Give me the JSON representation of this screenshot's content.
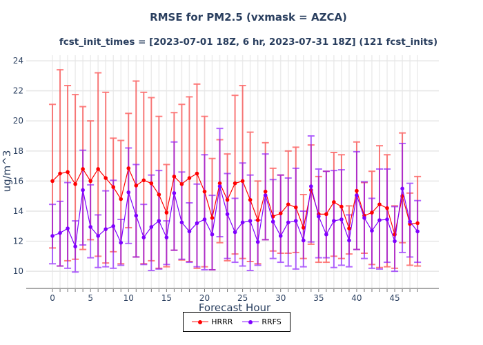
{
  "chart_data": {
    "type": "line",
    "title": "RMSE for PM2.5 (vxmask = AZCA)",
    "subtitle": "fcst_init_times = [2023-07-01 18Z, 6 hr, 2023-07-31 18Z] (121 fcst_inits)",
    "xlabel": "Forecast Hour",
    "ylabel": "ug/m^3",
    "xlim": [
      -3.45,
      50.8
    ],
    "ylim": [
      8.86,
      24.37
    ],
    "xticks": [
      0,
      5,
      10,
      15,
      20,
      25,
      30,
      35,
      40,
      45
    ],
    "yticks": [
      10,
      12,
      14,
      16,
      18,
      20,
      22,
      24
    ],
    "grid": true,
    "legend_position": "bottom-center",
    "x": [
      0,
      1,
      2,
      3,
      4,
      5,
      6,
      7,
      8,
      9,
      10,
      11,
      12,
      13,
      14,
      15,
      16,
      17,
      18,
      19,
      20,
      21,
      22,
      23,
      24,
      25,
      26,
      27,
      28,
      29,
      30,
      31,
      32,
      33,
      34,
      35,
      36,
      37,
      38,
      39,
      40,
      41,
      42,
      43,
      44,
      45,
      46,
      47,
      48
    ],
    "series": [
      {
        "name": "HRRR",
        "color": "#ff0000",
        "values": [
          16.0,
          16.5,
          16.6,
          15.8,
          16.8,
          16.0,
          16.8,
          16.2,
          15.6,
          14.8,
          16.85,
          15.7,
          16.05,
          15.85,
          15.1,
          13.9,
          16.3,
          15.8,
          16.2,
          16.5,
          15.3,
          13.55,
          15.85,
          14.75,
          15.85,
          16.0,
          14.75,
          13.4,
          15.3,
          13.65,
          13.85,
          14.45,
          14.25,
          12.9,
          15.4,
          13.8,
          13.8,
          14.6,
          14.3,
          12.85,
          15.35,
          13.7,
          13.9,
          14.45,
          14.2,
          12.45,
          15.0,
          13.15,
          13.2
        ],
        "lower": [
          11.55,
          10.35,
          10.7,
          10.8,
          11.45,
          12.1,
          11.0,
          10.55,
          11.3,
          10.5,
          12.9,
          10.95,
          10.5,
          10.7,
          10.2,
          10.3,
          11.4,
          10.75,
          10.65,
          10.2,
          10.3,
          10.1,
          11.9,
          10.7,
          11.15,
          10.85,
          10.65,
          10.5,
          12.1,
          11.35,
          11.2,
          11.2,
          11.25,
          10.85,
          11.8,
          10.6,
          10.6,
          11.0,
          10.85,
          11.15,
          11.45,
          11.2,
          10.45,
          10.25,
          10.3,
          10.2,
          11.9,
          10.4,
          10.35
        ],
        "upper": [
          21.1,
          23.4,
          22.35,
          21.75,
          20.95,
          20.0,
          23.2,
          21.9,
          18.85,
          18.7,
          20.5,
          22.65,
          21.9,
          21.55,
          20.3,
          17.1,
          20.55,
          21.1,
          21.6,
          22.45,
          20.3,
          17.5,
          18.75,
          17.8,
          21.7,
          22.35,
          19.25,
          16.0,
          18.55,
          16.85,
          16.4,
          18.0,
          18.25,
          15.1,
          18.4,
          16.3,
          16.65,
          17.9,
          17.75,
          14.35,
          18.6,
          15.9,
          16.65,
          18.35,
          17.75,
          14.35,
          19.2,
          15.2,
          16.3
        ]
      },
      {
        "name": "RRFS",
        "color": "#7f00ff",
        "values": [
          12.35,
          12.55,
          12.85,
          11.65,
          15.4,
          12.95,
          12.35,
          12.8,
          13.0,
          11.9,
          15.25,
          13.7,
          12.25,
          12.95,
          13.35,
          12.25,
          15.2,
          13.25,
          12.65,
          13.2,
          13.45,
          12.45,
          15.65,
          13.8,
          12.6,
          13.25,
          13.35,
          11.95,
          15.05,
          13.3,
          12.35,
          13.25,
          13.35,
          12.05,
          15.65,
          13.65,
          12.45,
          13.35,
          13.45,
          12.05,
          15.05,
          13.55,
          12.7,
          13.4,
          13.45,
          12.0,
          15.5,
          13.3,
          12.65
        ],
        "lower": [
          10.5,
          10.35,
          10.2,
          9.95,
          11.75,
          10.9,
          10.25,
          10.3,
          10.2,
          10.4,
          11.85,
          10.95,
          10.45,
          10.05,
          10.15,
          10.45,
          11.4,
          10.8,
          10.6,
          10.3,
          10.1,
          10.1,
          12.3,
          10.85,
          10.6,
          10.35,
          10.05,
          10.4,
          12.1,
          10.85,
          10.6,
          10.35,
          10.15,
          10.3,
          11.95,
          10.9,
          10.9,
          10.25,
          10.4,
          10.3,
          11.45,
          10.85,
          10.2,
          10.15,
          10.6,
          10.0,
          11.25,
          10.95,
          10.6
        ],
        "upper": [
          14.45,
          14.65,
          15.9,
          13.35,
          18.05,
          15.75,
          13.75,
          15.35,
          16.05,
          13.45,
          18.2,
          17.1,
          14.45,
          16.4,
          16.7,
          13.35,
          18.6,
          16.6,
          14.55,
          15.8,
          17.75,
          15.05,
          19.5,
          16.5,
          14.85,
          17.2,
          16.4,
          13.4,
          17.8,
          16.1,
          16.4,
          16.2,
          16.85,
          14.0,
          19.0,
          16.8,
          16.65,
          16.7,
          16.75,
          13.75,
          17.95,
          15.95,
          14.85,
          16.8,
          16.8,
          14.3,
          18.5,
          15.85,
          14.7
        ]
      }
    ]
  }
}
